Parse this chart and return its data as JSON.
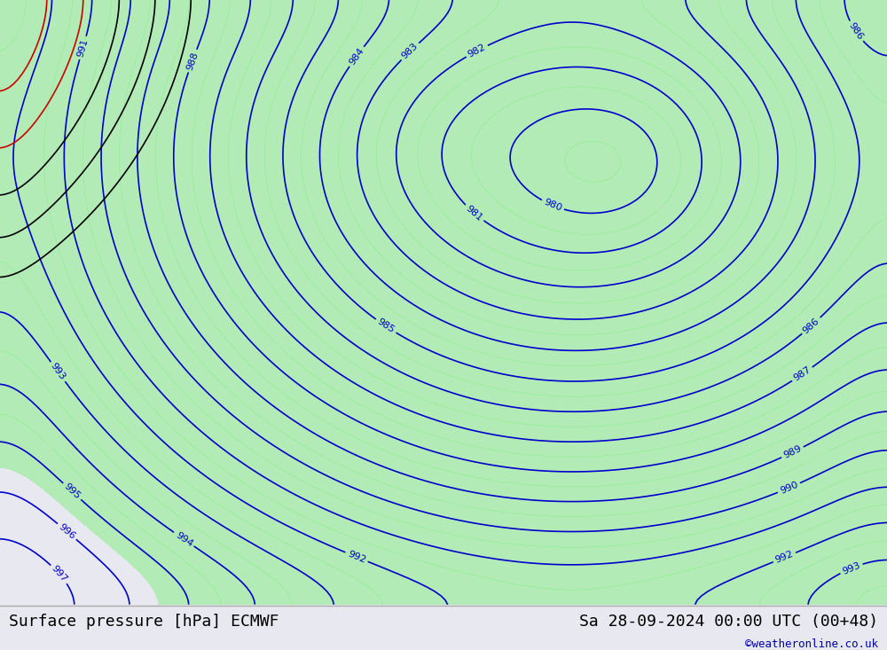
{
  "title_left": "Surface pressure [hPa] ECMWF",
  "title_right": "Sa 28-09-2024 00:00 UTC (00+48)",
  "credit": "©weatheronline.co.uk",
  "bg_color": "#e8e8f0",
  "contour_color_blue": "#0000cc",
  "contour_color_red": "#cc0000",
  "contour_color_black": "#000000",
  "green_fill": "#90ee90",
  "green_fill_alpha": 0.7,
  "label_fontsize": 8,
  "title_fontsize": 13,
  "credit_fontsize": 9,
  "bottom_bar_color": "#f0f0f0",
  "contour_linewidth": 1.2,
  "contour_interval": 1,
  "pressure_min": 975,
  "pressure_max": 1010
}
